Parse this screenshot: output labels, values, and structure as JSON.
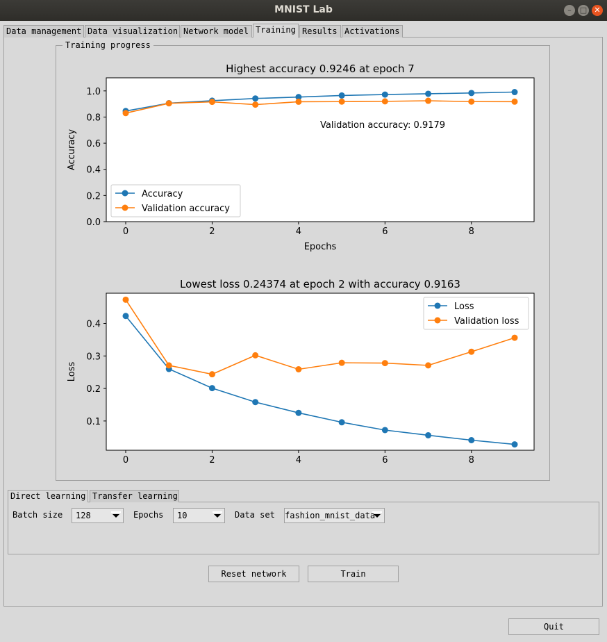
{
  "window": {
    "title": "MNIST Lab"
  },
  "tabs": [
    "Data management",
    "Data visualization",
    "Network model",
    "Training",
    "Results",
    "Activations"
  ],
  "group_title": "Training progress",
  "chart_data": [
    {
      "type": "line",
      "title": "Highest accuracy 0.9246 at epoch 7",
      "xlabel": "Epochs",
      "ylabel": "Accuracy",
      "x": [
        0,
        1,
        2,
        3,
        4,
        5,
        6,
        7,
        8,
        9
      ],
      "xticks": [
        "0",
        "2",
        "4",
        "6",
        "8"
      ],
      "yticks": [
        "0.0",
        "0.2",
        "0.4",
        "0.6",
        "0.8",
        "1.0"
      ],
      "ylim": [
        0,
        1.1
      ],
      "annotation": "Validation accuracy: 0.9179",
      "legend": "lower-left",
      "series": [
        {
          "name": "Accuracy",
          "color": "#1f77b4",
          "values": [
            0.846,
            0.906,
            0.925,
            0.942,
            0.953,
            0.965,
            0.972,
            0.978,
            0.984,
            0.991
          ]
        },
        {
          "name": "Validation accuracy",
          "color": "#ff7f0e",
          "values": [
            0.83,
            0.905,
            0.916,
            0.895,
            0.917,
            0.918,
            0.92,
            0.9246,
            0.918,
            0.9179
          ]
        }
      ]
    },
    {
      "type": "line",
      "title": "Lowest loss 0.24374 at epoch 2 with accuracy 0.9163",
      "xlabel": "",
      "ylabel": "Loss",
      "x": [
        0,
        1,
        2,
        3,
        4,
        5,
        6,
        7,
        8,
        9
      ],
      "xticks": [
        "0",
        "2",
        "4",
        "6",
        "8"
      ],
      "yticks": [
        "0.1",
        "0.2",
        "0.3",
        "0.4"
      ],
      "legend": "upper-right",
      "series": [
        {
          "name": "Loss",
          "color": "#1f77b4",
          "values": [
            0.423,
            0.26,
            0.201,
            0.158,
            0.125,
            0.096,
            0.072,
            0.056,
            0.041,
            0.028
          ]
        },
        {
          "name": "Validation loss",
          "color": "#ff7f0e",
          "values": [
            0.473,
            0.271,
            0.24374,
            0.302,
            0.259,
            0.279,
            0.278,
            0.271,
            0.313,
            0.356
          ]
        }
      ]
    }
  ],
  "subtabs": [
    "Direct learning",
    "Transfer learning"
  ],
  "controls": {
    "batch_label": "Batch size",
    "batch_value": "128",
    "epochs_label": "Epochs",
    "epochs_value": "10",
    "dataset_label": "Data set",
    "dataset_value": "fashion_mnist_data"
  },
  "buttons": {
    "reset": "Reset network",
    "train": "Train",
    "quit": "Quit"
  }
}
